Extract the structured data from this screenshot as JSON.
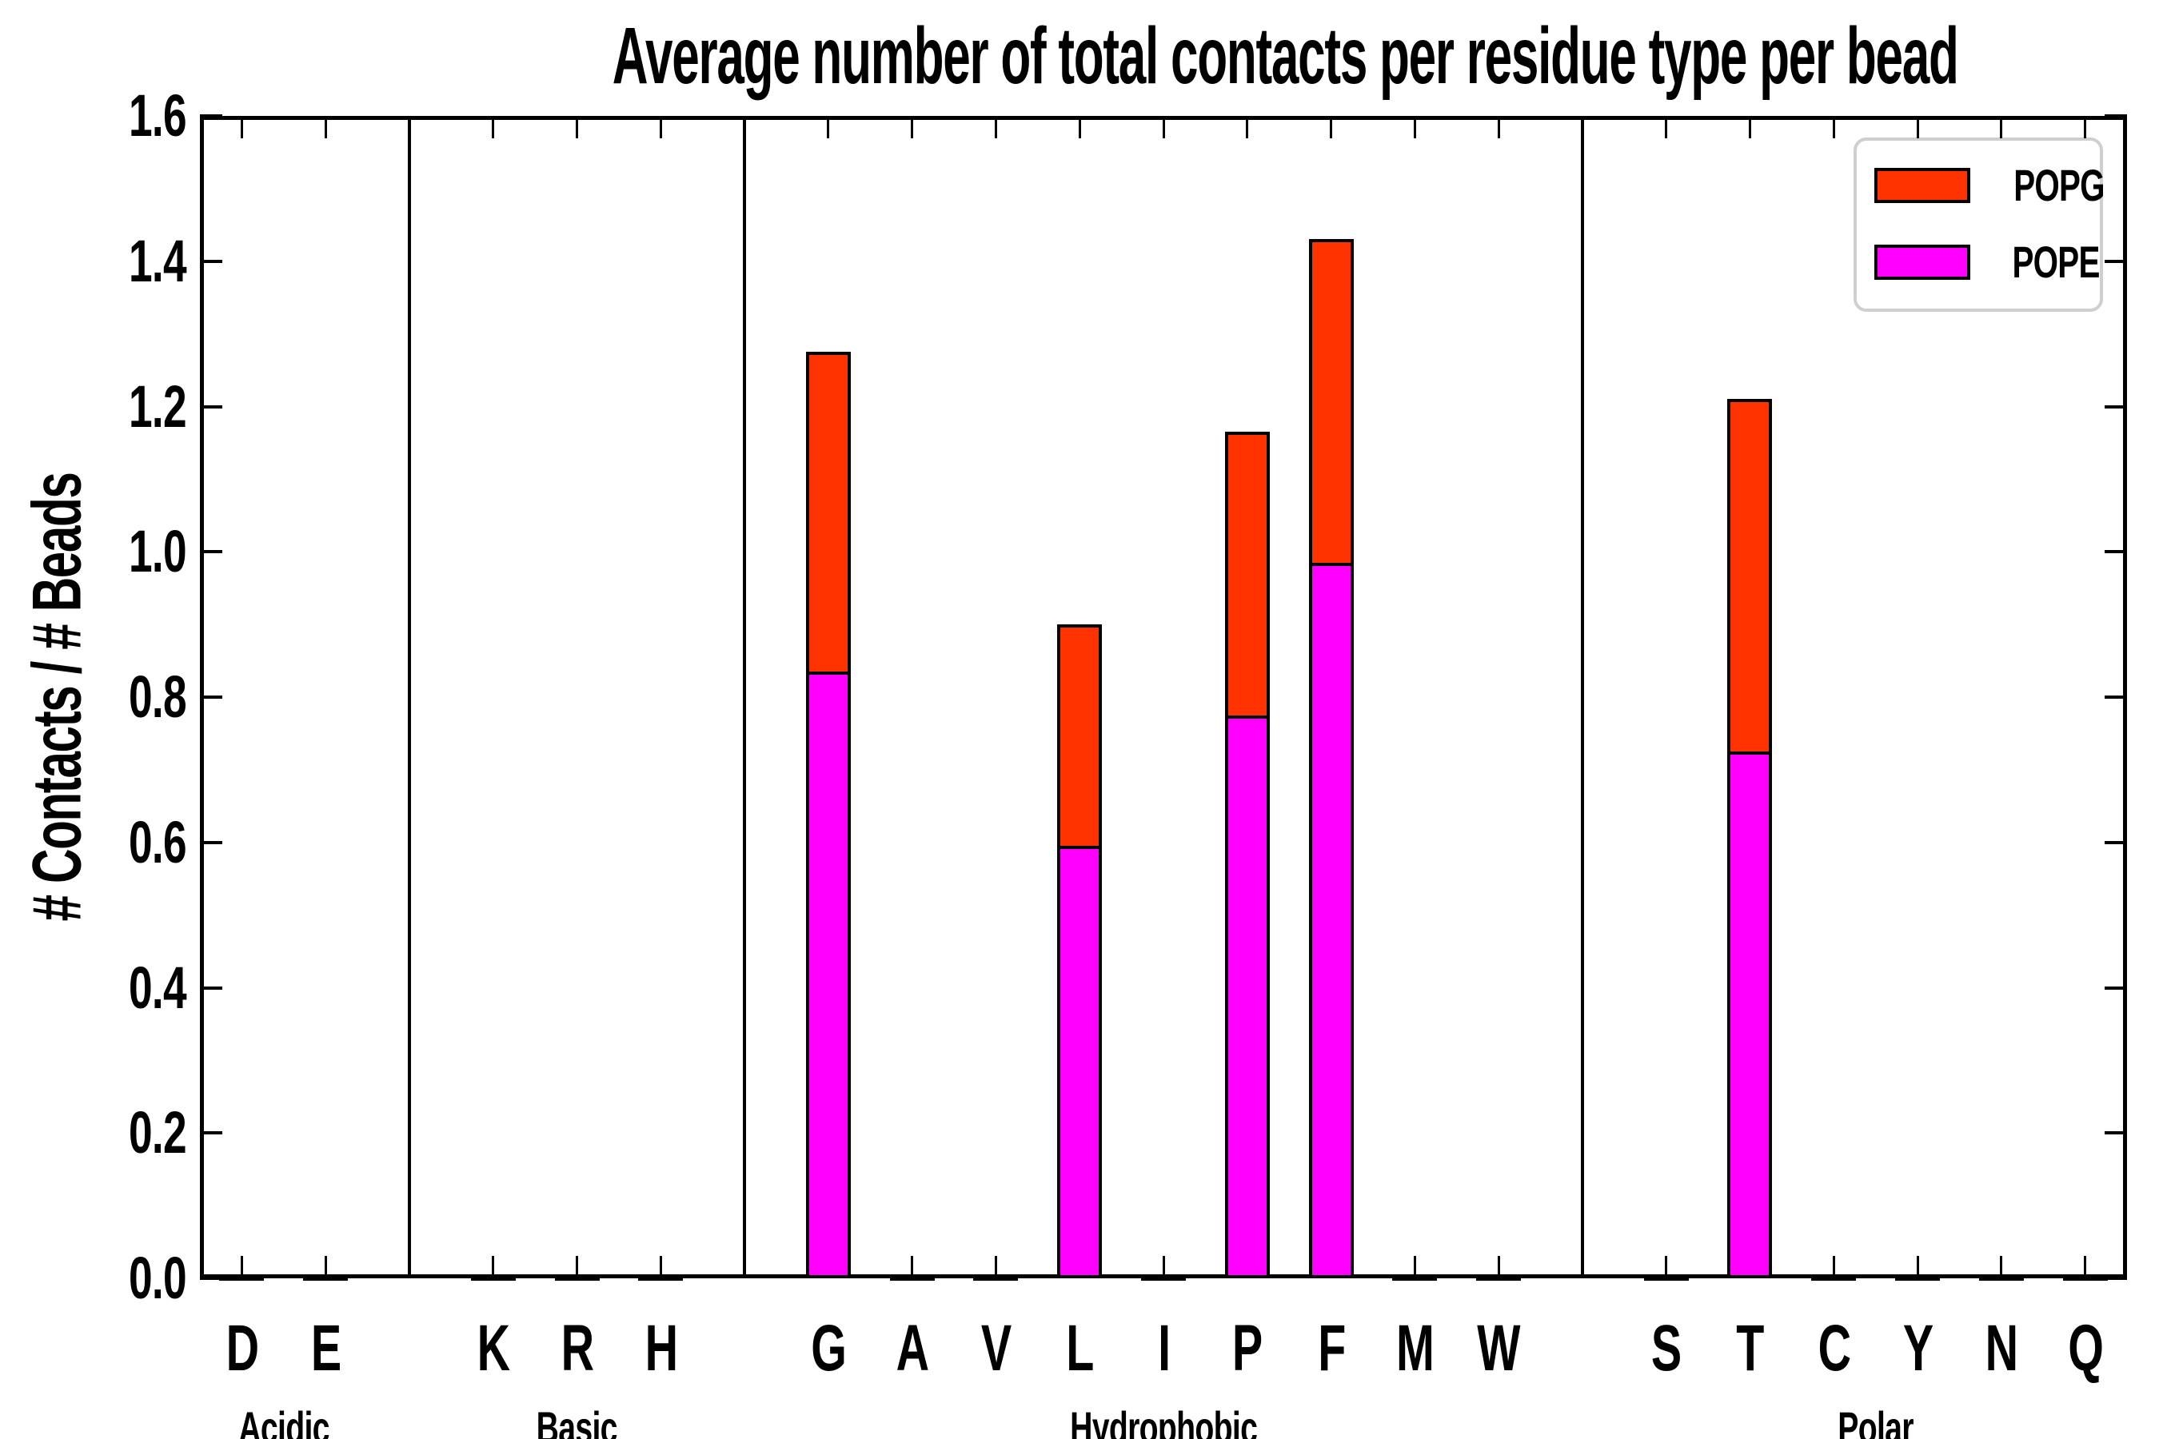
{
  "title": "Average number of total contacts per residue type per bead",
  "y_axis": {
    "label": "# Contacts / # Beads",
    "tick_labels": [
      "0.0",
      "0.2",
      "0.4",
      "0.6",
      "0.8",
      "1.0",
      "1.2",
      "1.4",
      "1.6"
    ],
    "limits": [
      0.0,
      1.6
    ]
  },
  "legend": {
    "items": [
      {
        "label": "POPG",
        "color": "#ff3300"
      },
      {
        "label": "POPE",
        "color": "#ff00ff"
      }
    ]
  },
  "chart_data": {
    "type": "bar",
    "stacked": true,
    "grid": false,
    "legend_position": "upper right",
    "title": "Average number of total contacts per residue type per bead",
    "xlabel": "",
    "ylabel": "# Contacts / # Beads",
    "ylim": [
      0.0,
      1.6
    ],
    "yticks": [
      0.0,
      0.2,
      0.4,
      0.6,
      0.8,
      1.0,
      1.2,
      1.4,
      1.6
    ],
    "categories": [
      "D",
      "E",
      "K",
      "R",
      "H",
      "G",
      "A",
      "V",
      "L",
      "I",
      "P",
      "F",
      "M",
      "W",
      "S",
      "T",
      "C",
      "Y",
      "N",
      "Q"
    ],
    "groups": [
      {
        "label": "Acidic",
        "categories": [
          "D",
          "E"
        ]
      },
      {
        "label": "Basic",
        "categories": [
          "K",
          "R",
          "H"
        ]
      },
      {
        "label": "Hydrophobic",
        "categories": [
          "G",
          "A",
          "V",
          "L",
          "I",
          "P",
          "F",
          "M",
          "W"
        ]
      },
      {
        "label": "Polar",
        "categories": [
          "S",
          "T",
          "C",
          "Y",
          "N",
          "Q"
        ]
      }
    ],
    "series": [
      {
        "name": "POPE",
        "color": "#ff00ff",
        "values": [
          0.003,
          0.003,
          0.003,
          0.003,
          0.003,
          0.835,
          0.003,
          0.003,
          0.595,
          0.003,
          0.775,
          0.985,
          0.003,
          0.003,
          0.003,
          0.725,
          0.003,
          0.003,
          0.003,
          0.003
        ]
      },
      {
        "name": "POPG",
        "color": "#ff3300",
        "values": [
          0.003,
          0.003,
          0.003,
          0.003,
          0.003,
          0.44,
          0.003,
          0.003,
          0.305,
          0.003,
          0.39,
          0.445,
          0.003,
          0.003,
          0.003,
          0.485,
          0.003,
          0.003,
          0.003,
          0.003
        ]
      }
    ],
    "bar_edge_color": "#000000",
    "totals_of_visible_bars": {
      "G": 1.275,
      "L": 0.9,
      "P": 1.165,
      "F": 1.43,
      "T": 1.21
    }
  }
}
